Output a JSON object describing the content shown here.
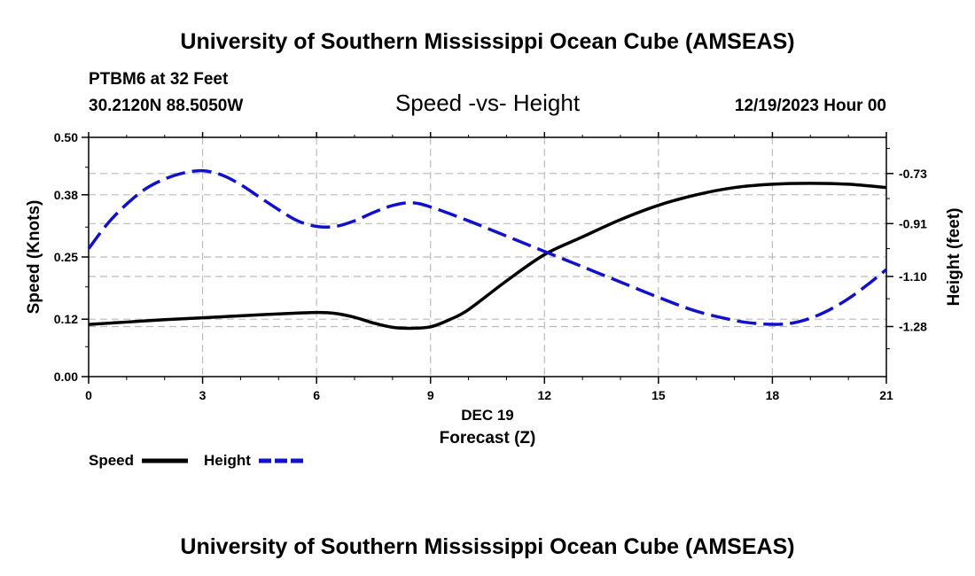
{
  "header": {
    "title": "University of Southern Mississippi Ocean Cube (AMSEAS)",
    "station": "PTBM6 at 32 Feet",
    "location": "30.2120N  88.5050W",
    "chart_title": "Speed -vs- Height",
    "datetime": "12/19/2023 Hour 00"
  },
  "footer": {
    "title": "University of Southern Mississippi Ocean Cube (AMSEAS)"
  },
  "chart_data": {
    "type": "line",
    "title": "Speed -vs- Height",
    "xlabel": "Forecast (Z)",
    "xlabel_date": "DEC 19",
    "ylabel": "Speed (Knots)",
    "y2label": "Height (feet)",
    "xlim": [
      0,
      21
    ],
    "ylim": [
      0,
      0.5
    ],
    "y2lim": [
      -1.46,
      -0.6
    ],
    "x_ticks": [
      "0",
      "3",
      "6",
      "9",
      "12",
      "15",
      "18",
      "21"
    ],
    "y_ticks": [
      "0.00",
      "0.12",
      "0.25",
      "0.38",
      "0.50"
    ],
    "y2_ticks": [
      "-0.73",
      "-0.91",
      "-1.10",
      "-1.28"
    ],
    "grid": true,
    "legend": [
      "Speed",
      "Height"
    ],
    "series": [
      {
        "name": "Speed",
        "axis": "left",
        "color": "#000000",
        "style": "solid",
        "x": [
          0,
          1,
          2,
          3,
          4,
          5,
          6,
          6.5,
          7,
          7.5,
          8,
          8.5,
          9,
          9.5,
          10,
          11,
          12,
          13,
          14,
          15,
          16,
          17,
          18,
          19,
          20,
          21
        ],
        "y": [
          0.109,
          0.114,
          0.119,
          0.123,
          0.127,
          0.131,
          0.134,
          0.132,
          0.124,
          0.112,
          0.103,
          0.101,
          0.104,
          0.119,
          0.14,
          0.2,
          0.255,
          0.292,
          0.328,
          0.358,
          0.38,
          0.395,
          0.402,
          0.404,
          0.402,
          0.395
        ]
      },
      {
        "name": "Height",
        "axis": "right",
        "color": "#1111cc",
        "style": "dashed",
        "x": [
          0,
          0.5,
          1,
          1.5,
          2,
          2.5,
          3,
          3.5,
          4,
          4.5,
          5,
          5.5,
          6,
          6.5,
          7,
          7.5,
          8,
          8.5,
          9,
          10,
          11,
          12,
          13,
          14,
          15,
          16,
          17,
          17.5,
          18,
          18.5,
          19,
          19.5,
          20,
          20.5,
          21
        ],
        "y": [
          -1.0,
          -0.91,
          -0.84,
          -0.785,
          -0.75,
          -0.728,
          -0.72,
          -0.735,
          -0.77,
          -0.815,
          -0.86,
          -0.9,
          -0.92,
          -0.92,
          -0.9,
          -0.87,
          -0.845,
          -0.835,
          -0.85,
          -0.9,
          -0.955,
          -1.01,
          -1.065,
          -1.12,
          -1.175,
          -1.225,
          -1.258,
          -1.268,
          -1.272,
          -1.268,
          -1.25,
          -1.22,
          -1.18,
          -1.13,
          -1.075
        ]
      }
    ]
  }
}
